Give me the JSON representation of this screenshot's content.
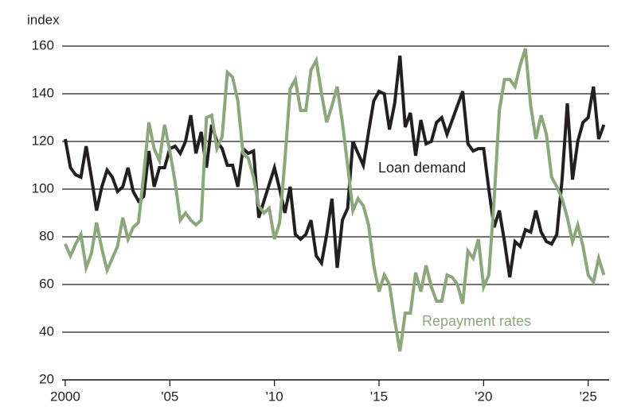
{
  "chart_data": {
    "type": "line",
    "y_label": "index",
    "x": [
      2000,
      2000.25,
      2000.5,
      2000.75,
      2001,
      2001.25,
      2001.5,
      2001.75,
      2002,
      2002.25,
      2002.5,
      2002.75,
      2003,
      2003.25,
      2003.5,
      2003.75,
      2004,
      2004.25,
      2004.5,
      2004.75,
      2005,
      2005.25,
      2005.5,
      2005.75,
      2006,
      2006.25,
      2006.5,
      2006.75,
      2007,
      2007.25,
      2007.5,
      2007.75,
      2008,
      2008.25,
      2008.5,
      2008.75,
      2009,
      2009.25,
      2009.5,
      2009.75,
      2010,
      2010.25,
      2010.5,
      2010.75,
      2011,
      2011.25,
      2011.5,
      2011.75,
      2012,
      2012.25,
      2012.5,
      2012.75,
      2013,
      2013.25,
      2013.5,
      2013.75,
      2014,
      2014.25,
      2014.5,
      2014.75,
      2015,
      2015.25,
      2015.5,
      2015.75,
      2016,
      2016.25,
      2016.5,
      2016.75,
      2017,
      2017.25,
      2017.5,
      2017.75,
      2018,
      2018.25,
      2018.5,
      2018.75,
      2019,
      2019.25,
      2019.5,
      2019.75,
      2020,
      2020.25,
      2020.5,
      2020.75,
      2021,
      2021.25,
      2021.5,
      2021.75,
      2022,
      2022.25,
      2022.5,
      2022.75,
      2023,
      2023.25,
      2023.5,
      2023.75,
      2024,
      2024.25,
      2024.5,
      2024.75,
      2025,
      2025.25,
      2025.5,
      2025.75
    ],
    "series": [
      {
        "name": "Loan demand",
        "color": "#231f20",
        "values": [
          121,
          109,
          106,
          105,
          118,
          105,
          91,
          101,
          108,
          105,
          99,
          101,
          109,
          99,
          95,
          97,
          116,
          101,
          109,
          109,
          117,
          118,
          115,
          120,
          131,
          115,
          124,
          109,
          127,
          120,
          117,
          110,
          110,
          101,
          117,
          115,
          116,
          88,
          95,
          102,
          109,
          100,
          90,
          101,
          81,
          79,
          81,
          87,
          72,
          69,
          81,
          96,
          67,
          87,
          92,
          120,
          115,
          110,
          124,
          137,
          141,
          140,
          125,
          136,
          156,
          126,
          132,
          114,
          129,
          119,
          120,
          128,
          130,
          123,
          129,
          135,
          141,
          119,
          116,
          117,
          117,
          100,
          84,
          91,
          78,
          63,
          78,
          76,
          83,
          82,
          91,
          82,
          78,
          77,
          81,
          104,
          136,
          104,
          120,
          128,
          130,
          143,
          121,
          127
        ]
      },
      {
        "name": "Repayment rates",
        "color": "#8aa87a",
        "values": [
          77,
          72,
          77,
          81,
          67,
          73,
          86,
          75,
          66,
          71,
          76,
          88,
          79,
          84,
          86,
          106,
          128,
          117,
          112,
          127,
          116,
          103,
          87,
          90,
          87,
          85,
          87,
          130,
          131,
          117,
          122,
          149,
          147,
          137,
          115,
          113,
          105,
          93,
          90,
          92,
          79,
          86,
          112,
          142,
          146,
          133,
          133,
          150,
          154,
          140,
          128,
          135,
          143,
          128,
          110,
          91,
          96,
          93,
          85,
          68,
          57,
          64,
          60,
          45,
          32,
          48,
          48,
          65,
          57,
          68,
          59,
          53,
          53,
          64,
          63,
          60,
          52,
          74,
          71,
          79,
          59,
          64,
          95,
          133,
          146,
          146,
          143,
          152,
          159,
          135,
          121,
          131,
          123,
          105,
          101,
          96,
          88,
          78,
          85,
          76,
          64,
          61,
          71,
          64
        ]
      }
    ],
    "xlim": [
      1999.85,
      2026.0
    ],
    "xticks": [
      2000,
      {
        "value": 2005,
        "label": "'05"
      },
      {
        "value": 2010,
        "label": "'10"
      },
      {
        "value": 2015,
        "label": "'15"
      },
      {
        "value": 2020,
        "label": "'20"
      },
      {
        "value": 2025,
        "label": "'25"
      }
    ],
    "ylim": [
      20,
      160
    ],
    "yticks": [
      20,
      40,
      60,
      80,
      100,
      120,
      140,
      160
    ],
    "grid": true
  }
}
